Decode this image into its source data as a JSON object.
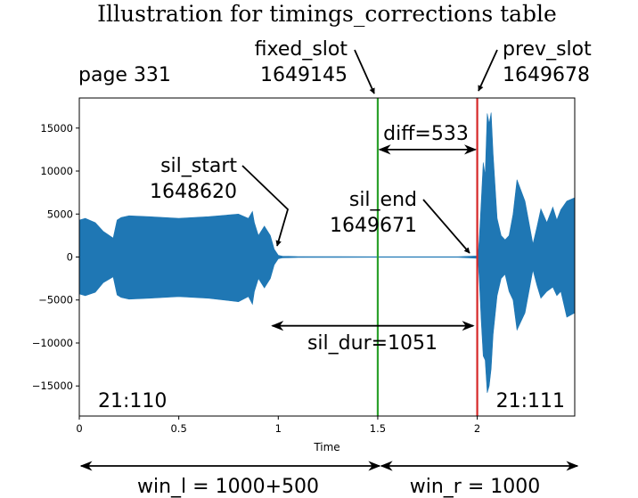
{
  "title": "Illustration for timings_corrections table",
  "page_label": "page 331",
  "colors": {
    "waveform": "#1f77b4",
    "fixed_line": "#2ca02c",
    "prev_line": "#d62728",
    "ink": "#000000"
  },
  "chart_data": {
    "type": "line",
    "xlabel": "Time",
    "ylabel": "",
    "xlim": [
      0,
      2.49
    ],
    "ylim": [
      -18500,
      18500
    ],
    "xticks": [
      0,
      0.5,
      1,
      1.5,
      2
    ],
    "xtick_labels": [
      "0",
      "0.5",
      "1",
      "1.5",
      "2"
    ],
    "yticks": [
      15000,
      10000,
      5000,
      0,
      -5000,
      -10000,
      -15000
    ],
    "ytick_labels": [
      "15000",
      "10000",
      "5000",
      "0",
      "−5000",
      "−10000",
      "−15000"
    ],
    "series": [
      {
        "envelope_x": [
          0,
          0.03,
          0.08,
          0.12,
          0.17,
          0.19,
          0.21,
          0.25,
          0.35,
          0.5,
          0.65,
          0.8,
          0.85,
          0.87,
          0.88,
          0.9,
          0.93,
          0.96,
          0.98,
          1.0,
          1.02,
          1.05,
          1.1,
          1.5,
          1.9,
          2.0,
          2.005,
          2.01,
          2.02,
          2.03,
          2.04,
          2.05,
          2.06,
          2.07,
          2.08,
          2.1,
          2.12,
          2.14,
          2.16,
          2.18,
          2.2,
          2.24,
          2.28,
          2.3,
          2.32,
          2.35,
          2.38,
          2.4,
          2.42,
          2.45,
          2.49
        ],
        "envelope_upper": [
          4300,
          4500,
          4000,
          3000,
          2200,
          4300,
          4600,
          4800,
          4700,
          4500,
          4700,
          5000,
          4500,
          5300,
          4000,
          2500,
          3600,
          2500,
          900,
          200,
          100,
          80,
          50,
          30,
          30,
          120,
          600,
          2000,
          6500,
          11000,
          9500,
          16700,
          15500,
          16800,
          12000,
          4500,
          2500,
          2000,
          2500,
          5000,
          9000,
          6500,
          1500,
          3500,
          5600,
          4000,
          5800,
          4300,
          5500,
          6500,
          6900
        ],
        "envelope_lower": [
          -4300,
          -4500,
          -4100,
          -3000,
          -2300,
          -4400,
          -4700,
          -4900,
          -4800,
          -4600,
          -4800,
          -5200,
          -4600,
          -5500,
          -4000,
          -2500,
          -3600,
          -2500,
          -900,
          -200,
          -100,
          -80,
          -50,
          -30,
          -30,
          -150,
          -700,
          -2500,
          -7500,
          -11500,
          -12000,
          -15800,
          -15000,
          -13000,
          -9000,
          -4500,
          -2500,
          -2000,
          -4000,
          -5000,
          -8500,
          -6500,
          -1500,
          -3300,
          -4800,
          -4000,
          -3500,
          -4500,
          -4000,
          -7000,
          -6500
        ]
      }
    ],
    "vlines": [
      {
        "name": "fixed_slot",
        "x": 1.5,
        "color": "#2ca02c"
      },
      {
        "name": "prev_slot",
        "x": 2.0,
        "color": "#d62728"
      }
    ],
    "annotations": [
      {
        "key": "sil_start",
        "text_lines": [
          "sil_start",
          "1648620"
        ],
        "target": [
          1.0,
          0
        ]
      },
      {
        "key": "sil_end",
        "text_lines": [
          "sil_end",
          "1649671"
        ],
        "target": [
          2.0,
          0
        ]
      },
      {
        "key": "fixed_slot",
        "text_lines": [
          "fixed_slot",
          "1649145"
        ],
        "target": [
          1.5,
          18500
        ]
      },
      {
        "key": "prev_slot",
        "text_lines": [
          "prev_slot",
          "1649678"
        ],
        "target": [
          2.0,
          18500
        ]
      },
      {
        "key": "diff",
        "text": "diff=533",
        "from_x": 1.5,
        "to_x": 2.0,
        "y": 12500
      },
      {
        "key": "sil_dur",
        "text": "sil_dur=1051",
        "from_x": 0.97,
        "to_x": 1.98,
        "y": -8000
      },
      {
        "key": "seg_left",
        "text": "21:110"
      },
      {
        "key": "seg_right",
        "text": "21:111"
      }
    ]
  },
  "windows": {
    "left": {
      "text": "win_l = 1000+500",
      "from_x": 0,
      "to_x": 1.5
    },
    "right": {
      "text": "win_r = 1000",
      "from_x": 1.5,
      "to_x": 2.49
    }
  }
}
